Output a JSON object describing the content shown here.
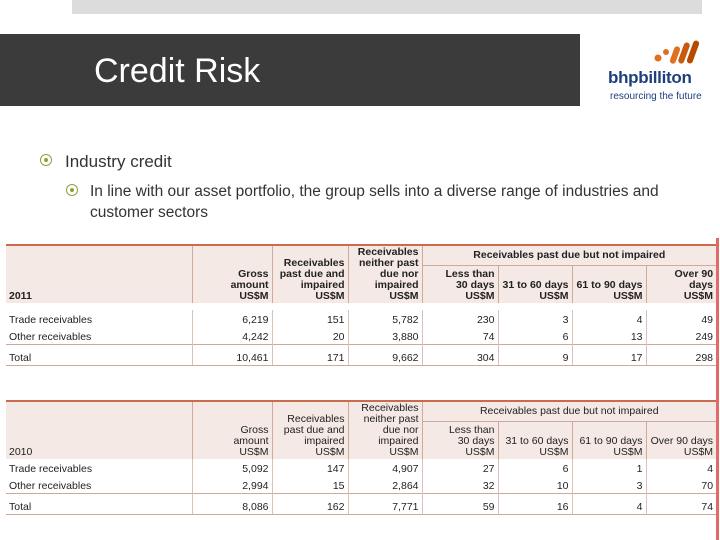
{
  "slide": {
    "title": "Credit Risk",
    "bullets": [
      "Industry credit",
      "In line with our asset portfolio, the group sells into a diverse range of industries and customer sectors"
    ]
  },
  "logo": {
    "name": "bhpbilliton",
    "tagline": "resourcing the future"
  },
  "colors": {
    "title_bg": "#3b3b3b",
    "bullet": "#8aa23a",
    "table_header": "#f4e9e4",
    "accent": "#cc6a4d"
  },
  "tables": {
    "t2011": {
      "year": "2011",
      "group_header": "Receivables past due but not impaired",
      "columns": [
        "Gross amount US$M",
        "Receivables past due and impaired US$M",
        "Receivables neither past due nor impaired US$M",
        "Less than 30 days US$M",
        "31 to 60 days US$M",
        "61 to 90 days US$M",
        "Over 90 days US$M"
      ],
      "rows": [
        {
          "label": "Trade receivables",
          "values": [
            "6,219",
            "151",
            "5,782",
            "230",
            "3",
            "4",
            "49"
          ]
        },
        {
          "label": "Other receivables",
          "values": [
            "4,242",
            "20",
            "3,880",
            "74",
            "6",
            "13",
            "249"
          ]
        }
      ],
      "total": {
        "label": "Total",
        "values": [
          "10,461",
          "171",
          "9,662",
          "304",
          "9",
          "17",
          "298"
        ]
      }
    },
    "t2010": {
      "year": "2010",
      "group_header": "Receivables past due but not impaired",
      "rows": [
        {
          "label": "Trade receivables",
          "values": [
            "5,092",
            "147",
            "4,907",
            "27",
            "6",
            "1",
            "4"
          ]
        },
        {
          "label": "Other receivables",
          "values": [
            "2,994",
            "15",
            "2,864",
            "32",
            "10",
            "3",
            "70"
          ]
        }
      ],
      "total": {
        "label": "Total",
        "values": [
          "8,086",
          "162",
          "7,771",
          "59",
          "16",
          "4",
          "74"
        ]
      }
    },
    "headers": {
      "gross": [
        "Gross",
        "amount",
        "US$M"
      ],
      "impaired": [
        "Receivables",
        "past due and",
        "impaired",
        "US$M"
      ],
      "neither": [
        "Receivables",
        "neither past",
        "due nor",
        "impaired",
        "US$M"
      ],
      "lt30": [
        "Less than",
        "30 days",
        "US$M"
      ],
      "d31": [
        "31 to 60 days",
        "US$M"
      ],
      "d61": [
        "61 to 90 days",
        "US$M"
      ],
      "d90": [
        "Over 90 days",
        "US$M"
      ]
    }
  }
}
